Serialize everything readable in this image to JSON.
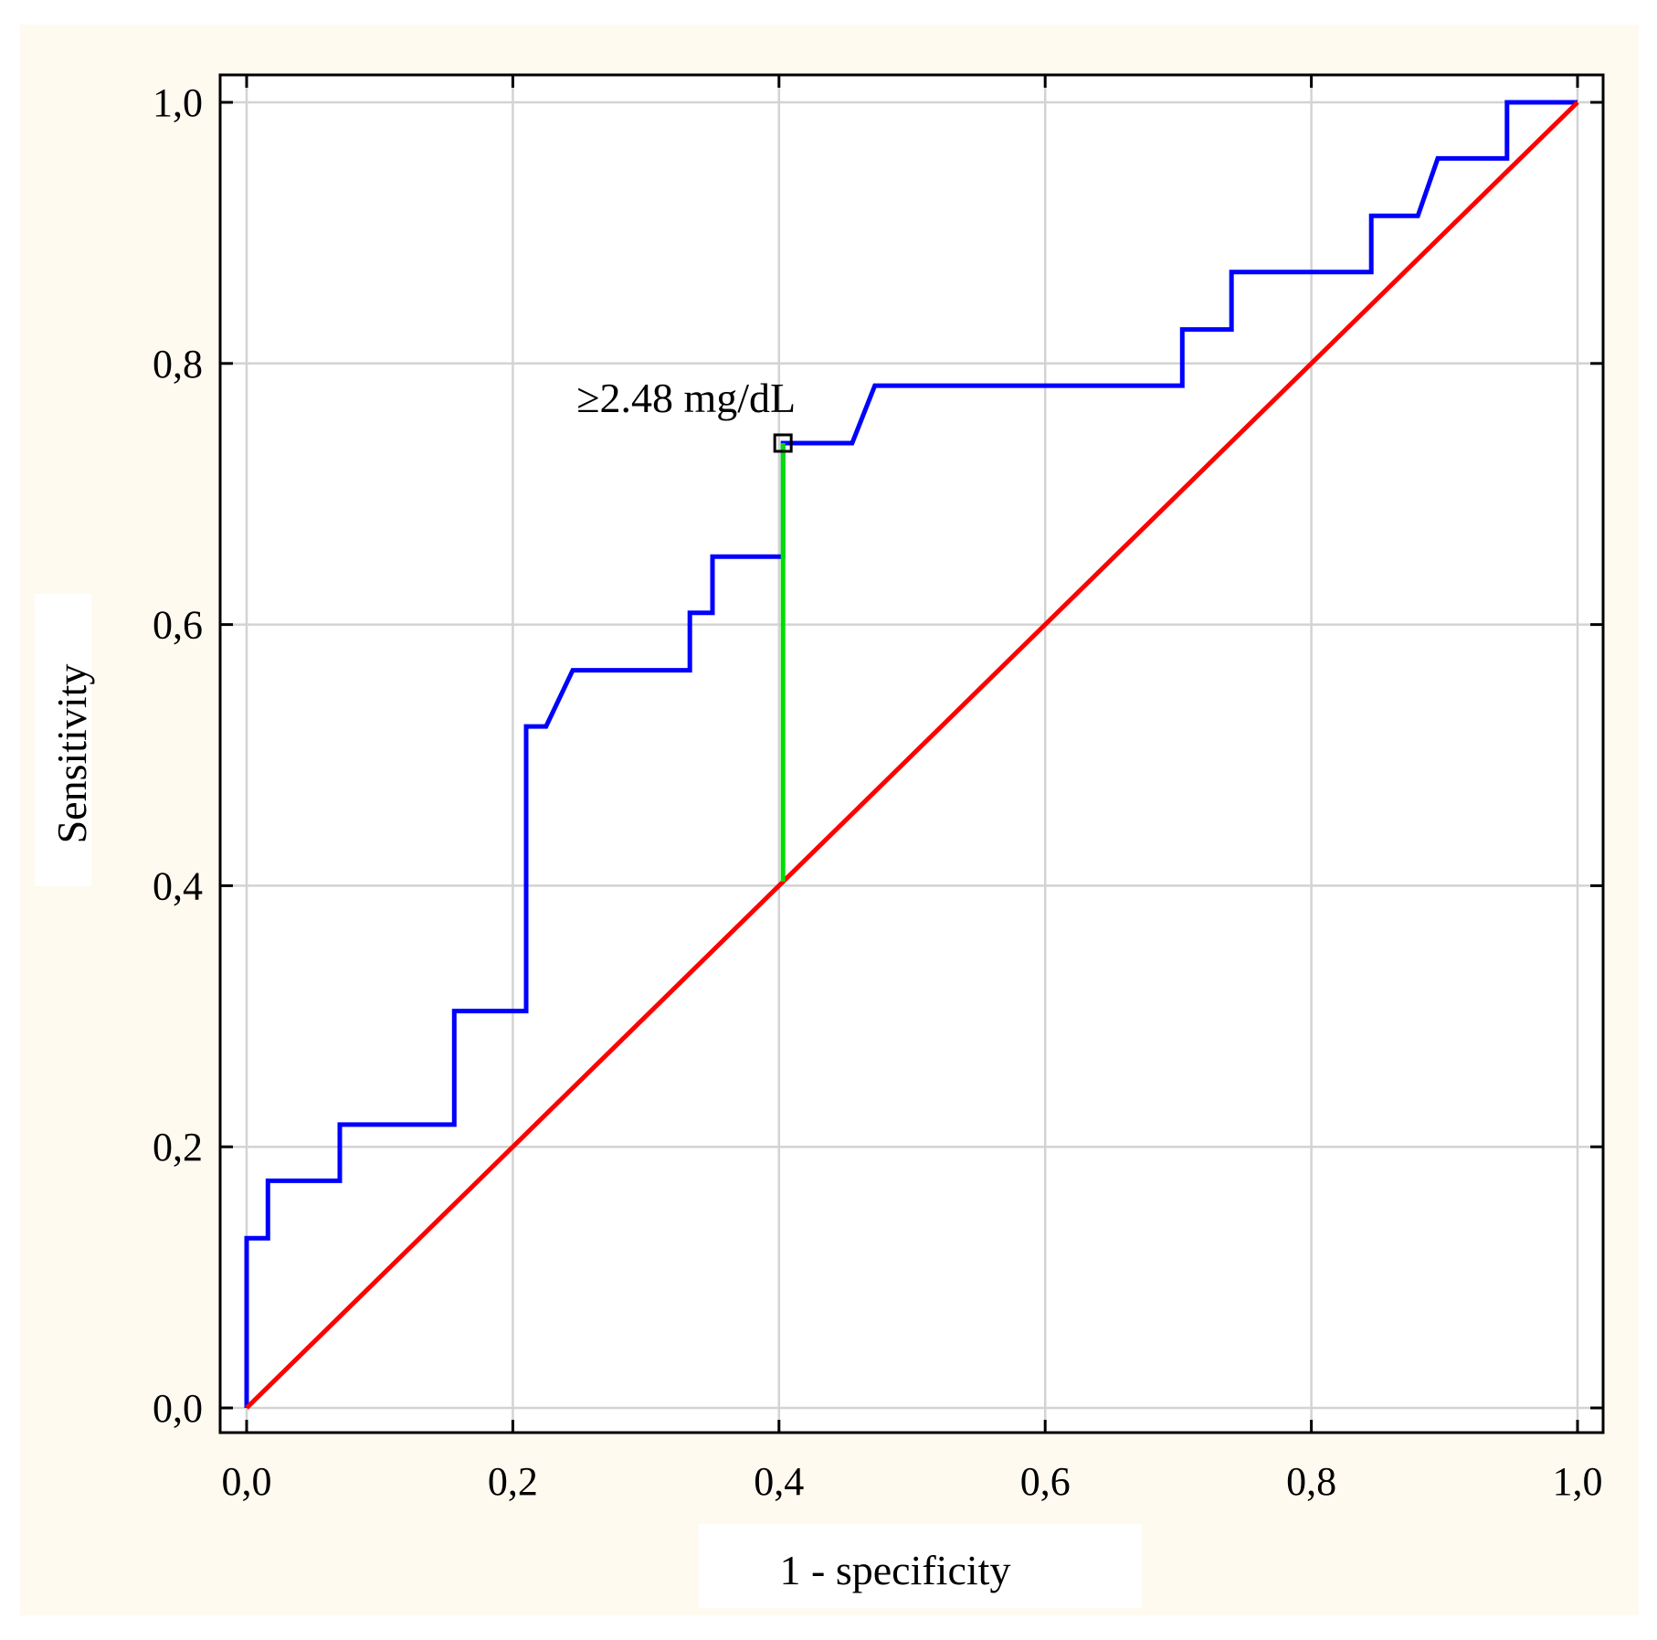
{
  "chart_data": {
    "type": "line",
    "title": "",
    "xlabel": "1 - specificity",
    "ylabel": "Sensitivity",
    "xlim": [
      0,
      1
    ],
    "ylim": [
      0,
      1
    ],
    "grid": true,
    "x_ticks": [
      "0,0",
      "0,2",
      "0,4",
      "0,6",
      "0,8",
      "1,0"
    ],
    "y_ticks": [
      "0,0",
      "0,2",
      "0,4",
      "0,6",
      "0,8",
      "1,0"
    ],
    "series": [
      {
        "color": "#0000ff",
        "x": [
          0.0,
          0.0,
          0.016,
          0.016,
          0.07,
          0.07,
          0.156,
          0.156,
          0.21,
          0.21,
          0.225,
          0.245,
          0.333,
          0.333,
          0.35,
          0.35,
          0.403,
          0.403,
          0.455,
          0.472,
          0.703,
          0.703,
          0.74,
          0.74,
          0.845,
          0.845,
          0.88,
          0.895,
          0.947,
          0.947,
          1.0
        ],
        "y": [
          0.0,
          0.13,
          0.13,
          0.174,
          0.174,
          0.217,
          0.217,
          0.304,
          0.304,
          0.522,
          0.522,
          0.565,
          0.565,
          0.609,
          0.609,
          0.652,
          0.652,
          0.739,
          0.739,
          0.783,
          0.783,
          0.826,
          0.826,
          0.87,
          0.87,
          0.913,
          0.913,
          0.957,
          0.957,
          1.0,
          1.0
        ]
      },
      {
        "color": "#ff0000",
        "x": [
          0,
          1
        ],
        "y": [
          0,
          1
        ]
      },
      {
        "color": "#00dd00",
        "x": [
          0.403,
          0.403
        ],
        "y": [
          0.403,
          0.739
        ]
      }
    ],
    "annotations": [
      {
        "text": "≥2.48 mg/dL",
        "x": 0.403,
        "y": 0.739
      }
    ]
  }
}
